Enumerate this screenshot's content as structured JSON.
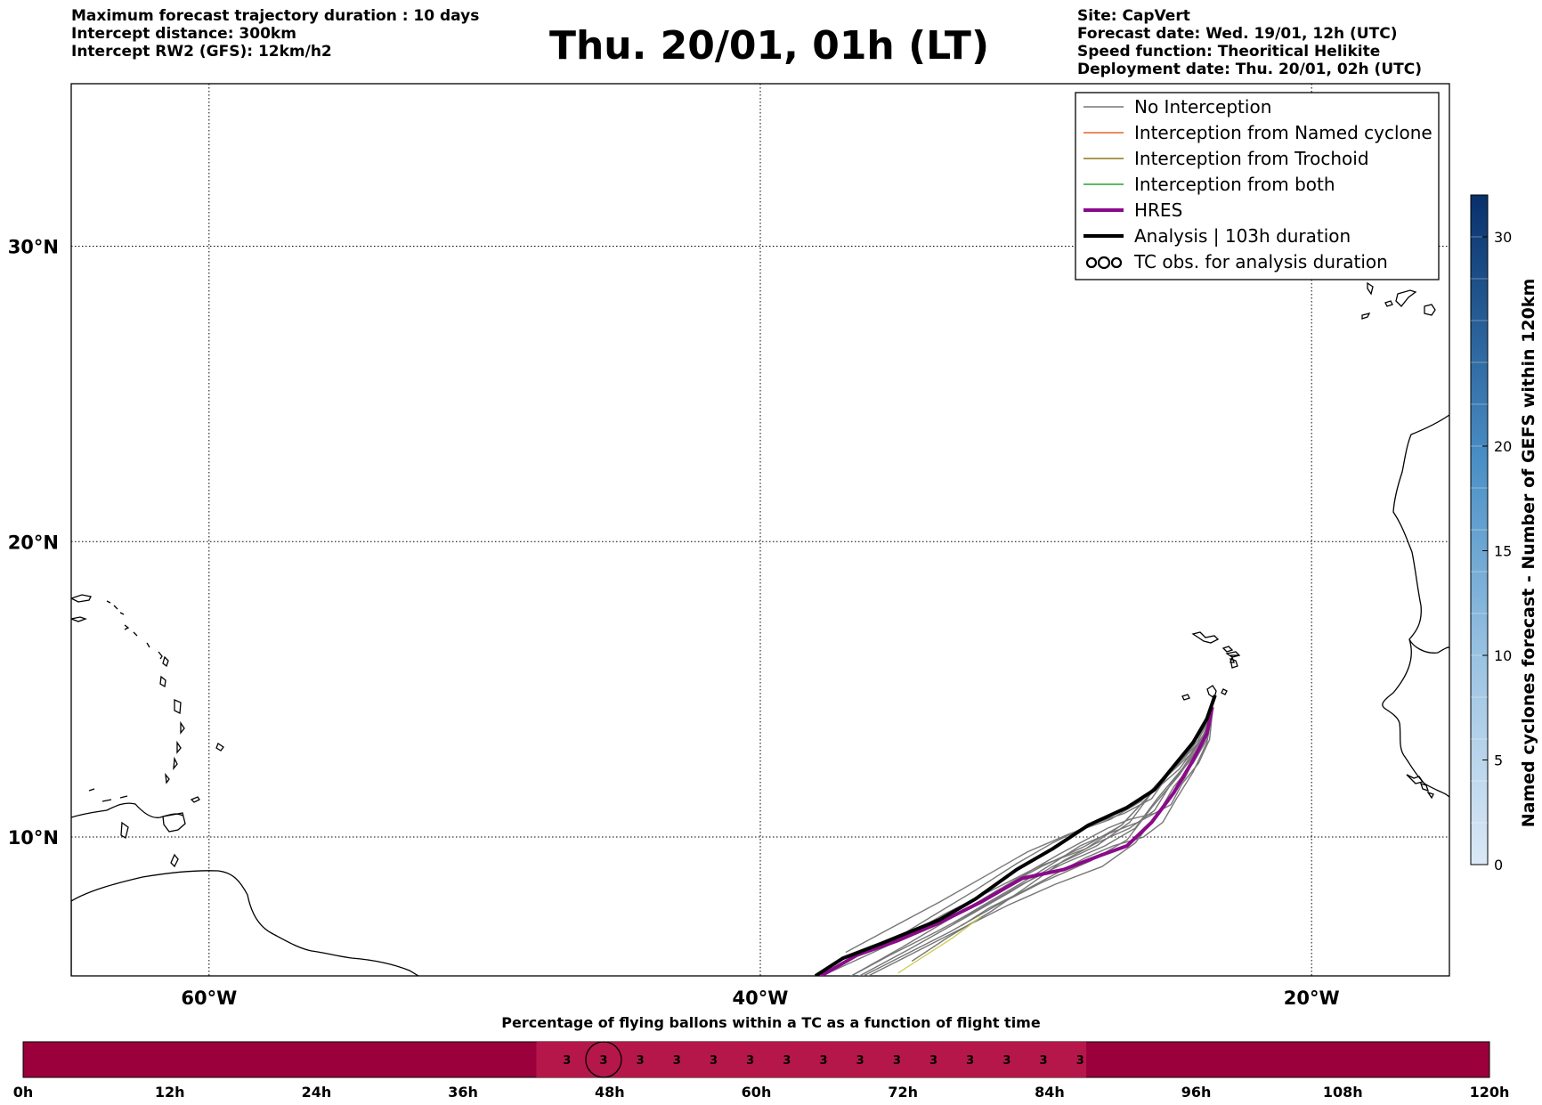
{
  "header_left": [
    "Maximum forecast trajectory duration : 10 days",
    "Intercept distance: 300km",
    "Intercept RW2 (GFS):  12km/h2"
  ],
  "header_right": [
    "Site: CapVert",
    "Forecast date: Wed. 19/01, 12h (UTC)",
    "Speed function: Theoritical Helikite",
    "Deployment date: Thu. 20/01, 02h (UTC)"
  ],
  "title": "Thu. 20/01, 01h (LT)",
  "colors": {
    "no_interception": "#777777",
    "named_cyclone": "#e8642a",
    "trochoid": "#8a7a1a",
    "both": "#2ca02c",
    "hres": "#8b0a8b",
    "analysis": "#000000",
    "timeline_bg": "#9b003c",
    "timeline_active": "#b5174a",
    "colorbar_low": "#dbe8f6",
    "colorbar_high": "#08306b"
  },
  "chart_data": [
    {
      "type": "line",
      "title": "Thu. 20/01, 01h (LT)",
      "xlabel": "",
      "ylabel": "",
      "x_ticks": [
        "60°W",
        "40°W",
        "20°W"
      ],
      "x_tick_values": [
        -60,
        -40,
        -20
      ],
      "y_ticks": [
        "10°N",
        "20°N",
        "30°N"
      ],
      "y_tick_values": [
        10,
        20,
        30
      ],
      "xlim": [
        -65,
        -15
      ],
      "ylim": [
        5.3,
        35.5
      ],
      "grid": true,
      "legend_position": "top-right",
      "legend": [
        {
          "label": "No Interception",
          "style": "no_interception"
        },
        {
          "label": "Interception from Named cyclone",
          "style": "named_cyclone"
        },
        {
          "label": "Interception from Trochoid",
          "style": "trochoid"
        },
        {
          "label": "Interception from both",
          "style": "both"
        },
        {
          "label": "HRES",
          "style": "hres"
        },
        {
          "label": "Analysis | 103h duration",
          "style": "analysis"
        },
        {
          "label": "TC obs. for analysis duration",
          "style": "tc_obs"
        }
      ],
      "series": [
        {
          "name": "Analysis | 103h duration",
          "style": "analysis",
          "x": [
            -23.5,
            -23.8,
            -24.3,
            -25.0,
            -25.7,
            -26.7,
            -28.1,
            -29.4,
            -30.7,
            -32.2,
            -33.5,
            -35.6,
            -37.0,
            -38.0
          ],
          "y": [
            14.8,
            14.0,
            13.2,
            12.4,
            11.6,
            11.0,
            10.4,
            9.6,
            8.9,
            7.9,
            7.2,
            6.4,
            5.9,
            5.3
          ]
        },
        {
          "name": "HRES",
          "style": "hres",
          "x": [
            -23.6,
            -23.8,
            -24.3,
            -25.0,
            -25.8,
            -26.7,
            -27.6,
            -29.0,
            -30.5,
            -32.0,
            -33.5,
            -35.0,
            -36.5,
            -37.8
          ],
          "y": [
            14.4,
            13.5,
            12.6,
            11.5,
            10.5,
            9.7,
            9.4,
            8.9,
            8.6,
            7.8,
            7.1,
            6.5,
            6.0,
            5.3
          ]
        }
      ],
      "ensemble": [
        {
          "dx": [
            0.0,
            0.1,
            0.2,
            0.3,
            0.4,
            0.5,
            0.6,
            0.7,
            0.8,
            0.8,
            0.8,
            0.7
          ],
          "dy": [
            0.0,
            0.0,
            -0.1,
            -0.2,
            -0.3,
            -0.3,
            -0.4,
            -0.5,
            -0.6,
            -0.6,
            -0.6,
            -0.6
          ]
        },
        {
          "dx": [
            0.0,
            0.0,
            -0.1,
            -0.2,
            -0.3,
            -0.4,
            -0.6,
            -0.8,
            -1.0,
            -1.2,
            -1.3,
            -1.5
          ],
          "dy": [
            0.0,
            0.1,
            0.2,
            0.3,
            0.3,
            0.3,
            0.3,
            0.3,
            0.2,
            0.1,
            0.0,
            -0.1
          ]
        },
        {
          "dx": [
            0.0,
            0.1,
            0.3,
            0.5,
            0.7,
            1.0,
            1.3,
            1.6,
            1.9,
            2.2,
            2.4,
            2.6
          ],
          "dy": [
            0.0,
            -0.1,
            -0.3,
            -0.5,
            -0.7,
            -0.8,
            -1.0,
            -1.2,
            -1.4,
            -1.5,
            -1.6,
            -1.7
          ]
        },
        {
          "dx": [
            0.0,
            -0.1,
            -0.2,
            -0.3,
            -0.5,
            -0.7,
            -1.0,
            -1.4,
            -1.8,
            -2.2,
            -2.6,
            -3.0
          ],
          "dy": [
            0.0,
            0.0,
            0.1,
            0.2,
            0.3,
            0.5,
            0.6,
            0.8,
            0.9,
            1.0,
            1.1,
            1.2
          ]
        },
        {
          "dx": [
            0.0,
            0.2,
            0.4,
            0.6,
            0.9,
            1.2,
            1.5,
            1.8,
            2.1,
            2.4,
            2.8,
            3.2
          ],
          "dy": [
            0.0,
            0.0,
            0.0,
            -0.1,
            -0.2,
            -0.4,
            -0.5,
            -0.7,
            -0.8,
            -1.0,
            -1.1,
            -1.2
          ]
        },
        {
          "dx": [
            0.0,
            0.0,
            0.1,
            0.1,
            0.2,
            0.3,
            0.4,
            0.5,
            0.6,
            0.7,
            0.8,
            0.9
          ],
          "dy": [
            0.0,
            0.1,
            0.3,
            0.5,
            0.6,
            0.6,
            0.6,
            0.6,
            0.5,
            0.4,
            0.3,
            0.2
          ]
        },
        {
          "dx": [
            0.0,
            -0.1,
            -0.2,
            -0.4,
            -0.6,
            -0.9,
            -1.2,
            -1.6,
            -2.0,
            -2.4,
            -2.8,
            -3.3
          ],
          "dy": [
            0.0,
            -0.1,
            -0.2,
            -0.2,
            -0.1,
            0.0,
            0.2,
            0.4,
            0.6,
            0.8,
            1.0,
            1.1
          ]
        },
        {
          "dx": [
            0.0,
            0.2,
            0.3,
            0.5,
            0.6,
            0.8,
            1.0,
            1.2,
            1.5,
            1.8,
            2.1,
            2.4
          ],
          "dy": [
            0.0,
            0.1,
            0.1,
            0.0,
            -0.1,
            -0.3,
            -0.5,
            -0.8,
            -1.0,
            -1.2,
            -1.4,
            -1.6
          ]
        },
        {
          "dx": [
            0.0,
            0.0,
            -0.1,
            -0.1,
            -0.2,
            -0.2,
            -0.3,
            -0.4,
            -0.5,
            -0.6,
            -0.7,
            -0.8
          ],
          "dy": [
            0.0,
            0.2,
            0.4,
            0.6,
            0.7,
            0.8,
            0.9,
            0.9,
            0.9,
            0.8,
            0.7,
            0.6
          ]
        },
        {
          "dx": [
            0.0,
            0.1,
            0.1,
            0.2,
            0.4,
            0.6,
            0.9,
            1.2,
            1.5,
            1.8,
            2.0,
            2.2
          ],
          "dy": [
            0.0,
            -0.2,
            -0.4,
            -0.6,
            -0.8,
            -1.0,
            -1.1,
            -1.2,
            -1.3,
            -1.4,
            -1.5,
            -1.6
          ]
        },
        {
          "dx": [
            0.0,
            -0.2,
            -0.4,
            -0.6,
            -0.9,
            -1.3,
            -1.8,
            -2.4,
            -3.0,
            -3.6,
            -4.2,
            -4.8
          ],
          "dy": [
            0.0,
            0.0,
            0.1,
            0.3,
            0.5,
            0.8,
            1.1,
            1.4,
            1.7,
            2.0,
            2.2,
            2.4
          ]
        },
        {
          "dx": [
            0.0,
            0.1,
            0.3,
            0.6,
            0.9,
            1.2,
            1.4,
            1.6,
            1.8,
            2.0,
            2.2,
            2.4
          ],
          "dy": [
            0.0,
            0.0,
            -0.1,
            -0.1,
            -0.2,
            -0.3,
            -0.5,
            -0.7,
            -0.9,
            -1.1,
            -1.3,
            -1.5
          ]
        }
      ],
      "ensemble_base": {
        "x": [
          -23.6,
          -23.9,
          -24.5,
          -25.3,
          -26.0,
          -27.0,
          -28.4,
          -29.8,
          -31.2,
          -32.8,
          -34.5,
          -36.0
        ],
        "y": [
          14.2,
          13.3,
          12.4,
          11.5,
          10.6,
          10.0,
          9.5,
          8.9,
          8.2,
          7.4,
          6.6,
          5.9
        ]
      },
      "trochoid_segment": {
        "x": [
          -32.0,
          -33.0,
          -34.0,
          -35.0
        ],
        "y": [
          7.3,
          6.6,
          6.0,
          5.4
        ]
      }
    },
    {
      "type": "heatmap",
      "title": "",
      "ylabel": "Named cyclones forecast - Number of GEFS within 120km",
      "ticks": [
        0,
        5,
        10,
        15,
        20,
        30
      ],
      "range": [
        0,
        32
      ]
    },
    {
      "type": "bar",
      "title": "Percentage of flying ballons within a TC as a function of flight time",
      "x_ticks": [
        "0h",
        "12h",
        "24h",
        "36h",
        "48h",
        "60h",
        "72h",
        "84h",
        "96h",
        "108h",
        "120h"
      ],
      "x_range": [
        0,
        120
      ],
      "active_range": [
        42,
        87
      ],
      "cells": [
        {
          "hour": 44.5,
          "value": "3"
        },
        {
          "hour": 47.5,
          "value": "3"
        },
        {
          "hour": 50.5,
          "value": "3"
        },
        {
          "hour": 53.5,
          "value": "3"
        },
        {
          "hour": 56.5,
          "value": "3"
        },
        {
          "hour": 59.5,
          "value": "3"
        },
        {
          "hour": 62.5,
          "value": "3"
        },
        {
          "hour": 65.5,
          "value": "3"
        },
        {
          "hour": 68.5,
          "value": "3"
        },
        {
          "hour": 71.5,
          "value": "3"
        },
        {
          "hour": 74.5,
          "value": "3"
        },
        {
          "hour": 77.5,
          "value": "3"
        },
        {
          "hour": 80.5,
          "value": "3"
        },
        {
          "hour": 83.5,
          "value": "3"
        },
        {
          "hour": 86.5,
          "value": "3"
        }
      ],
      "circled_hour": 47.5
    }
  ]
}
